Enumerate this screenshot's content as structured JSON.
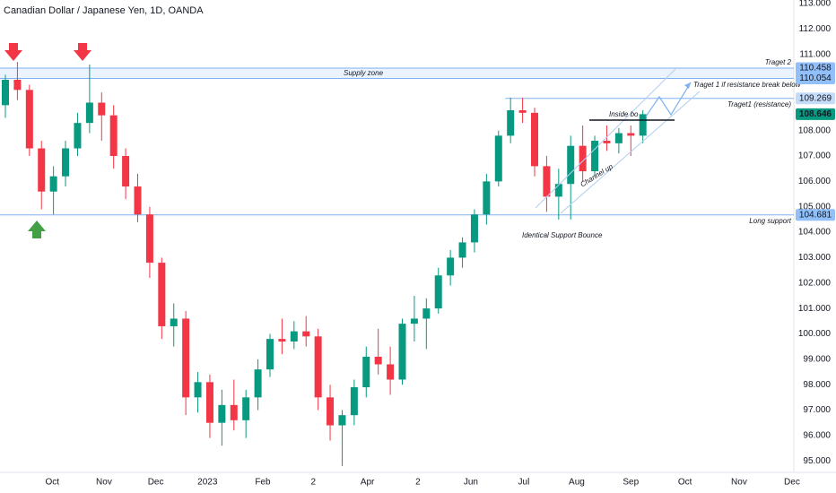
{
  "chart_data": {
    "type": "candlestick",
    "title": "Canadian Dollar / Japanese Yen, 1D, OANDA",
    "x": [
      0,
      1,
      2,
      3,
      4,
      5,
      6,
      7,
      8,
      9,
      10,
      11,
      12,
      13,
      14,
      15,
      16,
      17,
      18,
      19,
      20,
      21,
      22,
      23,
      24,
      25,
      26,
      27,
      28,
      29,
      30,
      31,
      32,
      33,
      34,
      35,
      36,
      37,
      38,
      39,
      40,
      41,
      42,
      43,
      44,
      45,
      46,
      47,
      48,
      49,
      50,
      51,
      52,
      53
    ],
    "open": [
      109.0,
      110.0,
      109.6,
      107.3,
      105.6,
      106.2,
      107.3,
      108.3,
      109.1,
      108.6,
      107.0,
      105.8,
      104.7,
      102.8,
      100.3,
      100.6,
      97.5,
      98.1,
      96.5,
      97.2,
      96.6,
      97.5,
      98.6,
      99.8,
      99.7,
      100.1,
      99.9,
      97.5,
      96.4,
      96.8,
      97.9,
      99.1,
      98.8,
      98.2,
      100.4,
      100.6,
      101.0,
      102.3,
      103.0,
      103.6,
      104.7,
      106.0,
      107.8,
      108.8,
      108.7,
      106.6,
      105.4,
      105.9,
      107.4,
      106.4,
      107.6,
      107.5,
      107.9,
      107.8
    ],
    "high": [
      110.2,
      110.7,
      109.8,
      107.6,
      106.6,
      107.6,
      108.7,
      110.6,
      109.5,
      109.0,
      107.3,
      106.3,
      105.0,
      103.0,
      101.2,
      100.9,
      98.5,
      98.4,
      97.8,
      98.2,
      97.8,
      99.0,
      100.0,
      100.6,
      100.5,
      100.7,
      100.2,
      98.0,
      97.0,
      98.2,
      99.5,
      100.2,
      99.5,
      100.6,
      101.5,
      101.4,
      102.6,
      103.3,
      103.8,
      104.9,
      106.3,
      108.0,
      109.3,
      109.3,
      108.9,
      107.0,
      106.5,
      107.8,
      108.2,
      107.8,
      108.2,
      108.1,
      108.2,
      108.8
    ],
    "low": [
      108.5,
      109.2,
      107.0,
      104.9,
      104.7,
      105.8,
      107.0,
      107.9,
      107.6,
      106.5,
      105.3,
      104.4,
      102.2,
      99.8,
      99.5,
      96.8,
      96.9,
      95.9,
      95.6,
      96.2,
      95.9,
      97.0,
      98.3,
      99.2,
      99.4,
      99.5,
      97.0,
      95.8,
      94.8,
      96.4,
      97.5,
      98.4,
      97.6,
      98.0,
      99.7,
      99.4,
      100.8,
      101.9,
      102.6,
      103.2,
      104.3,
      105.8,
      107.5,
      108.3,
      106.2,
      104.8,
      104.5,
      104.5,
      106.0,
      106.2,
      107.2,
      107.1,
      107.0,
      107.5
    ],
    "close": [
      110.0,
      109.6,
      107.3,
      105.6,
      106.2,
      107.3,
      108.3,
      109.1,
      108.6,
      107.0,
      105.8,
      104.7,
      102.8,
      100.3,
      100.6,
      97.5,
      98.1,
      96.5,
      97.2,
      96.6,
      97.5,
      98.6,
      99.8,
      99.7,
      100.1,
      99.9,
      97.5,
      96.4,
      96.8,
      97.9,
      99.1,
      98.8,
      98.2,
      100.4,
      100.6,
      101.0,
      102.3,
      103.0,
      103.6,
      104.7,
      106.0,
      107.8,
      108.8,
      108.7,
      106.6,
      105.4,
      105.9,
      107.4,
      106.4,
      107.6,
      107.5,
      107.9,
      107.8,
      108.646
    ],
    "up_color": "#089981",
    "down_color": "#f23645",
    "xlim": [
      0,
      66
    ],
    "xticks": [
      {
        "value": 3.9,
        "label": "Oct"
      },
      {
        "value": 8.2,
        "label": "Nov"
      },
      {
        "value": 12.5,
        "label": "Dec"
      },
      {
        "value": 16.8,
        "label": "2023"
      },
      {
        "value": 21.4,
        "label": "Feb"
      },
      {
        "value": 25.6,
        "label": "2"
      },
      {
        "value": 30.1,
        "label": "Apr"
      },
      {
        "value": 34.3,
        "label": "2"
      },
      {
        "value": 38.7,
        "label": "Jun"
      },
      {
        "value": 43.1,
        "label": "Jul"
      },
      {
        "value": 47.5,
        "label": "Aug"
      },
      {
        "value": 52.0,
        "label": "Sep"
      },
      {
        "value": 56.5,
        "label": "Oct"
      },
      {
        "value": 61.0,
        "label": "Nov"
      },
      {
        "value": 65.4,
        "label": "Dec"
      }
    ],
    "ylim": [
      94.7,
      113.15
    ],
    "yticks": [
      {
        "value": 113,
        "label": "113.000"
      },
      {
        "value": 112,
        "label": "112.000"
      },
      {
        "value": 111,
        "label": "111.000"
      },
      {
        "value": 108,
        "label": "108.000"
      },
      {
        "value": 107,
        "label": "107.000"
      },
      {
        "value": 106,
        "label": "106.000"
      },
      {
        "value": 105,
        "label": "105.000"
      },
      {
        "value": 104,
        "label": "104.000"
      },
      {
        "value": 103,
        "label": "103.000"
      },
      {
        "value": 102,
        "label": "102.000"
      },
      {
        "value": 101,
        "label": "101.000"
      },
      {
        "value": 100,
        "label": "100.000"
      },
      {
        "value": 99,
        "label": "99.000"
      },
      {
        "value": 98,
        "label": "98.000"
      },
      {
        "value": 97,
        "label": "97.000"
      },
      {
        "value": 96,
        "label": "96.000"
      },
      {
        "value": 95,
        "label": "95.000"
      }
    ],
    "levels": [
      {
        "value": 110.458,
        "text": "Traget 2",
        "color": "#90bff9"
      },
      {
        "value": 110.054,
        "color": "#90bff9"
      },
      {
        "value": 109.269,
        "text": "Traget1 (resistance)",
        "color": "#c5dcf9"
      },
      {
        "value": 108.646,
        "color": "#089981"
      },
      {
        "value": 104.681,
        "text": "Long support",
        "color": "#90bff9"
      }
    ],
    "zone_label": "Supply zone",
    "annotations": [
      "Traget 1 if resistance break below",
      "Inside bo",
      "Channel up",
      "Identical Support Bounce"
    ]
  }
}
